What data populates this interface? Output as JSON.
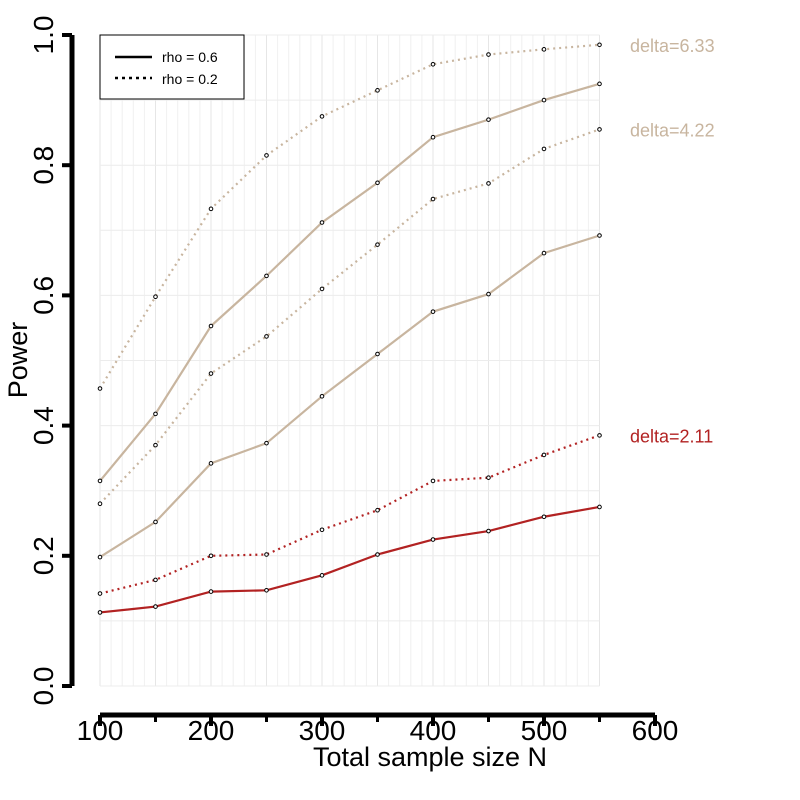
{
  "chart_data": {
    "type": "line",
    "title": "",
    "xlabel": "Total sample size N",
    "ylabel": "Power",
    "xlim": [
      100,
      600
    ],
    "ylim": [
      0,
      1
    ],
    "x_ticks": [
      100,
      200,
      300,
      400,
      500,
      600
    ],
    "y_ticks": [
      0.0,
      0.2,
      0.4,
      0.6,
      0.8,
      1.0
    ],
    "y_tick_labels": [
      "0.0",
      "0.2",
      "0.4",
      "0.6",
      "0.8",
      "1.0"
    ],
    "grid": true,
    "legend_position": "top-left",
    "legend": [
      {
        "label": "rho = 0.6",
        "style": "solid"
      },
      {
        "label": "rho = 0.2",
        "style": "dotted"
      }
    ],
    "x": [
      100,
      150,
      200,
      250,
      300,
      350,
      400,
      450,
      500,
      550
    ],
    "series": [
      {
        "delta": "delta=6.33",
        "rho": "0.2",
        "style": "dotted",
        "color": "#c8b59f",
        "values": [
          0.457,
          0.598,
          0.733,
          0.815,
          0.875,
          0.915,
          0.955,
          0.97,
          0.978,
          0.985
        ]
      },
      {
        "delta": "delta=6.33",
        "rho": "0.6",
        "style": "solid",
        "color": "#c8b59f",
        "values": [
          0.315,
          0.418,
          0.553,
          0.63,
          0.712,
          0.773,
          0.843,
          0.87,
          0.9,
          0.925
        ]
      },
      {
        "delta": "delta=4.22",
        "rho": "0.2",
        "style": "dotted",
        "color": "#c8b59f",
        "values": [
          0.28,
          0.37,
          0.48,
          0.537,
          0.61,
          0.678,
          0.748,
          0.772,
          0.825,
          0.855
        ]
      },
      {
        "delta": "delta=4.22",
        "rho": "0.6",
        "style": "solid",
        "color": "#c8b59f",
        "values": [
          0.198,
          0.252,
          0.342,
          0.373,
          0.445,
          0.51,
          0.575,
          0.602,
          0.665,
          0.692
        ]
      },
      {
        "delta": "delta=2.11",
        "rho": "0.2",
        "style": "dotted",
        "color": "#b22222",
        "values": [
          0.142,
          0.163,
          0.2,
          0.202,
          0.24,
          0.27,
          0.315,
          0.32,
          0.355,
          0.385
        ]
      },
      {
        "delta": "delta=2.11",
        "rho": "0.6",
        "style": "solid",
        "color": "#b22222",
        "values": [
          0.113,
          0.122,
          0.145,
          0.147,
          0.17,
          0.202,
          0.225,
          0.238,
          0.26,
          0.275
        ]
      }
    ],
    "annotations": [
      {
        "text": "delta=6.33",
        "color": "#c8b59f",
        "y": 0.985
      },
      {
        "text": "delta=4.22",
        "color": "#c8b59f",
        "y": 0.855
      },
      {
        "text": "delta=2.11",
        "color": "#b22222",
        "y": 0.385
      }
    ]
  }
}
